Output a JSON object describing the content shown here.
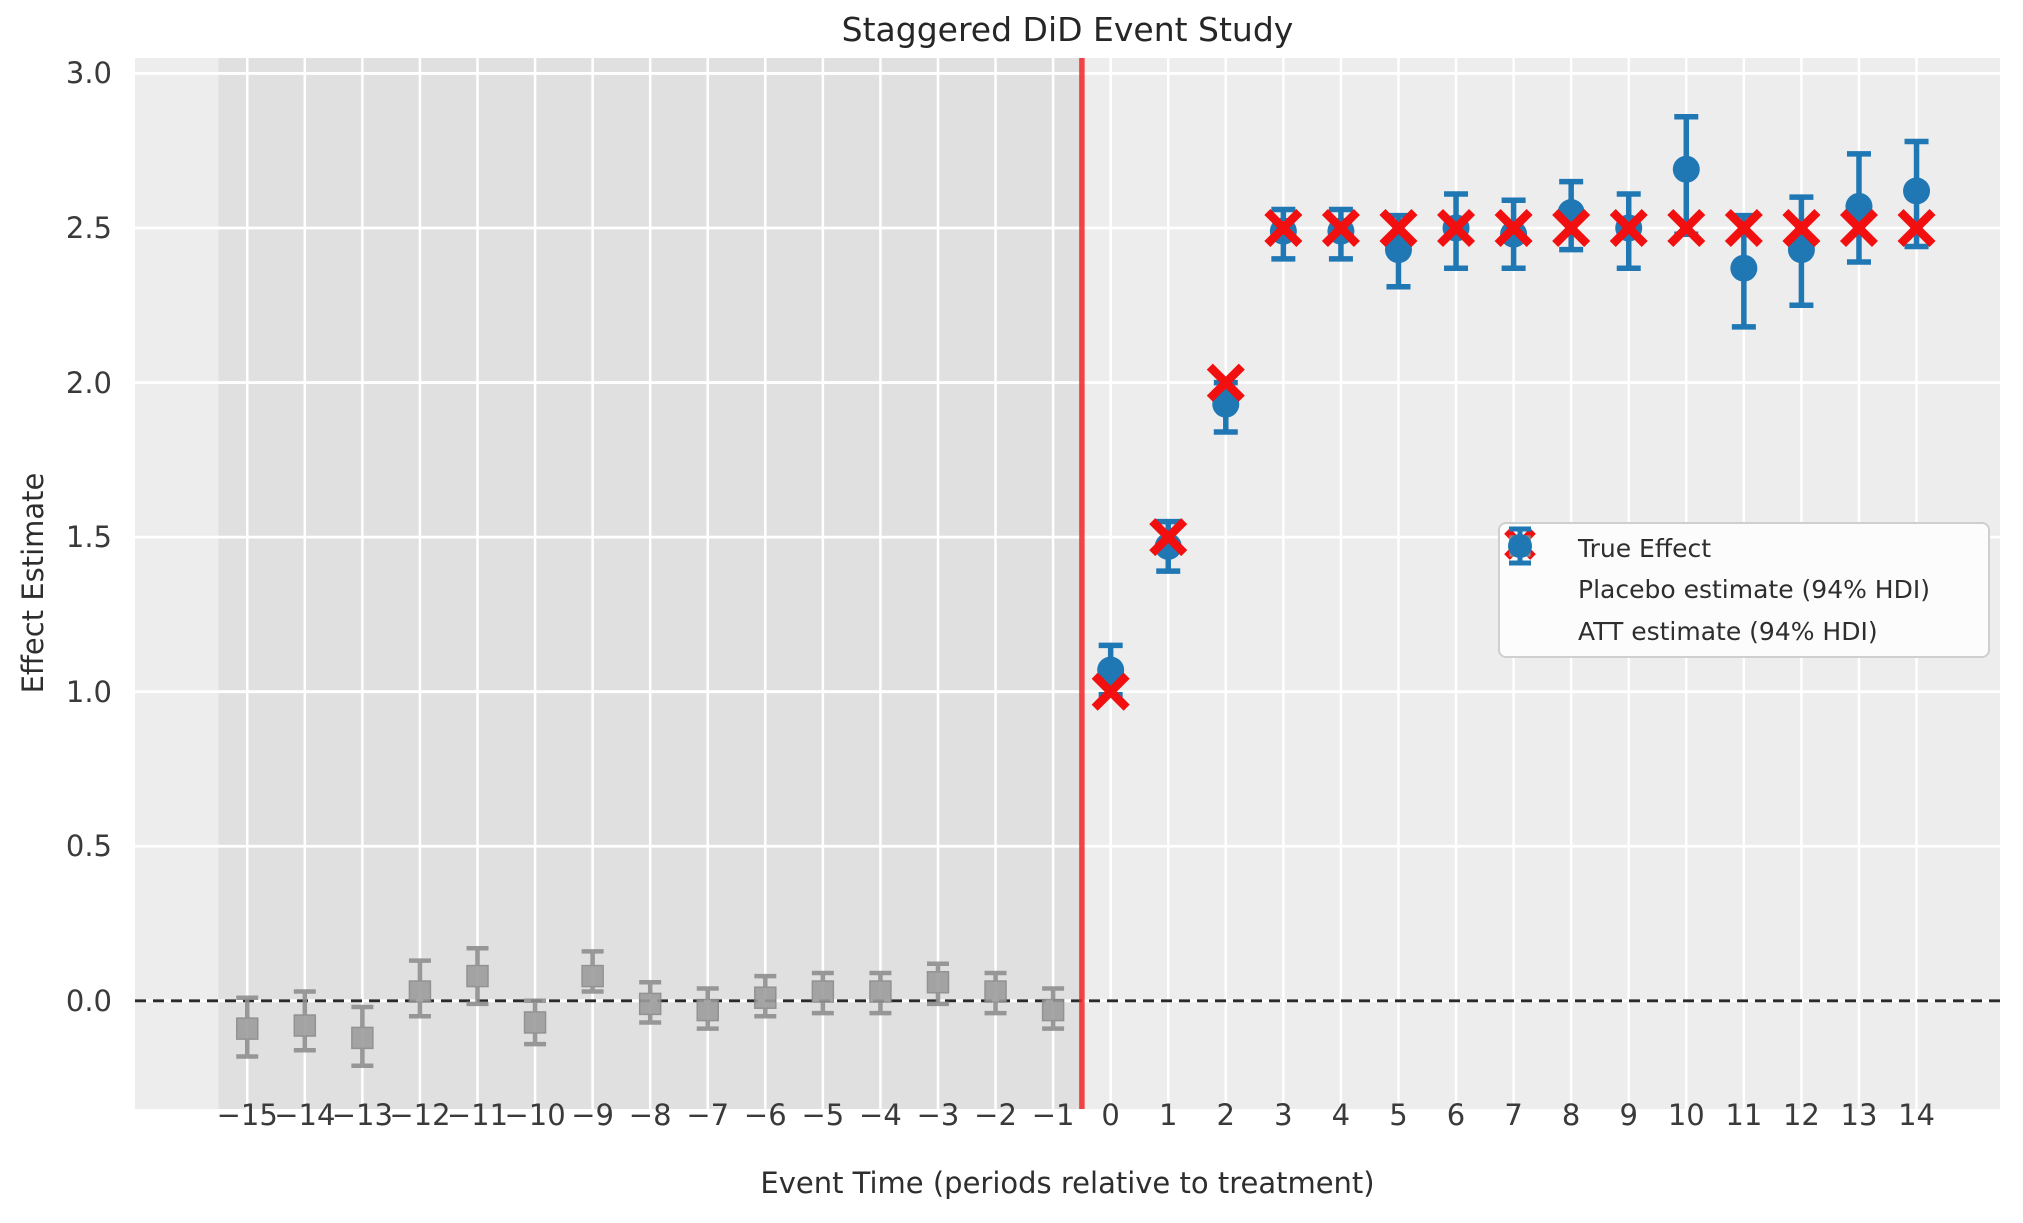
{
  "chart_data": {
    "type": "scatter",
    "title": "Staggered DiD Event Study",
    "xlabel": "Event Time (periods relative to treatment)",
    "ylabel": "Effect Estimate",
    "xlim": [
      -16.95,
      15.45
    ],
    "ylim": [
      -0.35,
      3.05
    ],
    "grid": true,
    "legend_position": "center-right",
    "x_ticks": [
      {
        "v": -15,
        "label": "−15"
      },
      {
        "v": -14,
        "label": "−14"
      },
      {
        "v": -13,
        "label": "−13"
      },
      {
        "v": -12,
        "label": "−12"
      },
      {
        "v": -11,
        "label": "−11"
      },
      {
        "v": -10,
        "label": "−10"
      },
      {
        "v": -9,
        "label": "−9"
      },
      {
        "v": -8,
        "label": "−8"
      },
      {
        "v": -7,
        "label": "−7"
      },
      {
        "v": -6,
        "label": "−6"
      },
      {
        "v": -5,
        "label": "−5"
      },
      {
        "v": -4,
        "label": "−4"
      },
      {
        "v": -3,
        "label": "−3"
      },
      {
        "v": -2,
        "label": "−2"
      },
      {
        "v": -1,
        "label": "−1"
      },
      {
        "v": 0,
        "label": "0"
      },
      {
        "v": 1,
        "label": "1"
      },
      {
        "v": 2,
        "label": "2"
      },
      {
        "v": 3,
        "label": "3"
      },
      {
        "v": 4,
        "label": "4"
      },
      {
        "v": 5,
        "label": "5"
      },
      {
        "v": 6,
        "label": "6"
      },
      {
        "v": 7,
        "label": "7"
      },
      {
        "v": 8,
        "label": "8"
      },
      {
        "v": 9,
        "label": "9"
      },
      {
        "v": 10,
        "label": "10"
      },
      {
        "v": 11,
        "label": "11"
      },
      {
        "v": 12,
        "label": "12"
      },
      {
        "v": 13,
        "label": "13"
      },
      {
        "v": 14,
        "label": "14"
      }
    ],
    "y_ticks": [
      {
        "v": 0.0,
        "label": "0.0"
      },
      {
        "v": 0.5,
        "label": "0.5"
      },
      {
        "v": 1.0,
        "label": "1.0"
      },
      {
        "v": 1.5,
        "label": "1.5"
      },
      {
        "v": 2.0,
        "label": "2.0"
      },
      {
        "v": 2.5,
        "label": "2.5"
      },
      {
        "v": 3.0,
        "label": "3.0"
      }
    ],
    "zero_line": {
      "y": 0.0,
      "style": "dashed",
      "color": "#2a2a2a"
    },
    "treatment_line": {
      "x": -0.5,
      "color": "rgba(242,38,38,0.85)"
    },
    "pre_period_span": {
      "from": -15.5,
      "to": -0.5,
      "color": "#e0e0e0"
    },
    "plot_bg": "#ededed",
    "grid_color": "#ffffff",
    "series": [
      {
        "name": "True Effect",
        "marker": "x",
        "color": "#f10f0f",
        "points": [
          {
            "x": 0,
            "y": 1.0
          },
          {
            "x": 1,
            "y": 1.5
          },
          {
            "x": 2,
            "y": 2.0
          },
          {
            "x": 3,
            "y": 2.5
          },
          {
            "x": 4,
            "y": 2.5
          },
          {
            "x": 5,
            "y": 2.5
          },
          {
            "x": 6,
            "y": 2.5
          },
          {
            "x": 7,
            "y": 2.5
          },
          {
            "x": 8,
            "y": 2.5
          },
          {
            "x": 9,
            "y": 2.5
          },
          {
            "x": 10,
            "y": 2.5
          },
          {
            "x": 11,
            "y": 2.5
          },
          {
            "x": 12,
            "y": 2.5
          },
          {
            "x": 13,
            "y": 2.5
          },
          {
            "x": 14,
            "y": 2.5
          }
        ]
      },
      {
        "name": "Placebo estimate (94% HDI)",
        "marker": "square",
        "color": "#9d9d9d",
        "edge_color": "#8a8a8a",
        "points": [
          {
            "x": -15,
            "y": -0.09,
            "lo": -0.18,
            "hi": 0.01
          },
          {
            "x": -14,
            "y": -0.08,
            "lo": -0.16,
            "hi": 0.03
          },
          {
            "x": -13,
            "y": -0.12,
            "lo": -0.21,
            "hi": -0.02
          },
          {
            "x": -12,
            "y": 0.03,
            "lo": -0.05,
            "hi": 0.13
          },
          {
            "x": -11,
            "y": 0.08,
            "lo": -0.01,
            "hi": 0.17
          },
          {
            "x": -10,
            "y": -0.07,
            "lo": -0.14,
            "hi": 0.0
          },
          {
            "x": -9,
            "y": 0.08,
            "lo": 0.03,
            "hi": 0.16
          },
          {
            "x": -8,
            "y": -0.01,
            "lo": -0.07,
            "hi": 0.06
          },
          {
            "x": -7,
            "y": -0.03,
            "lo": -0.09,
            "hi": 0.04
          },
          {
            "x": -6,
            "y": 0.01,
            "lo": -0.05,
            "hi": 0.08
          },
          {
            "x": -5,
            "y": 0.03,
            "lo": -0.04,
            "hi": 0.09
          },
          {
            "x": -4,
            "y": 0.03,
            "lo": -0.04,
            "hi": 0.09
          },
          {
            "x": -3,
            "y": 0.06,
            "lo": -0.01,
            "hi": 0.12
          },
          {
            "x": -2,
            "y": 0.03,
            "lo": -0.04,
            "hi": 0.09
          },
          {
            "x": -1,
            "y": -0.03,
            "lo": -0.09,
            "hi": 0.04
          }
        ]
      },
      {
        "name": "ATT estimate (94% HDI)",
        "marker": "circle",
        "color": "#1f77b4",
        "points": [
          {
            "x": 0,
            "y": 1.07,
            "lo": 0.99,
            "hi": 1.15
          },
          {
            "x": 1,
            "y": 1.47,
            "lo": 1.39,
            "hi": 1.55
          },
          {
            "x": 2,
            "y": 1.93,
            "lo": 1.84,
            "hi": 2.0
          },
          {
            "x": 3,
            "y": 2.49,
            "lo": 2.4,
            "hi": 2.56
          },
          {
            "x": 4,
            "y": 2.49,
            "lo": 2.4,
            "hi": 2.56
          },
          {
            "x": 5,
            "y": 2.43,
            "lo": 2.31,
            "hi": 2.54
          },
          {
            "x": 6,
            "y": 2.5,
            "lo": 2.37,
            "hi": 2.61
          },
          {
            "x": 7,
            "y": 2.48,
            "lo": 2.37,
            "hi": 2.59
          },
          {
            "x": 8,
            "y": 2.55,
            "lo": 2.43,
            "hi": 2.65
          },
          {
            "x": 9,
            "y": 2.5,
            "lo": 2.37,
            "hi": 2.61
          },
          {
            "x": 10,
            "y": 2.69,
            "lo": 2.48,
            "hi": 2.86
          },
          {
            "x": 11,
            "y": 2.37,
            "lo": 2.18,
            "hi": 2.54
          },
          {
            "x": 12,
            "y": 2.43,
            "lo": 2.25,
            "hi": 2.6
          },
          {
            "x": 13,
            "y": 2.57,
            "lo": 2.39,
            "hi": 2.74
          },
          {
            "x": 14,
            "y": 2.62,
            "lo": 2.44,
            "hi": 2.78
          }
        ]
      }
    ]
  }
}
